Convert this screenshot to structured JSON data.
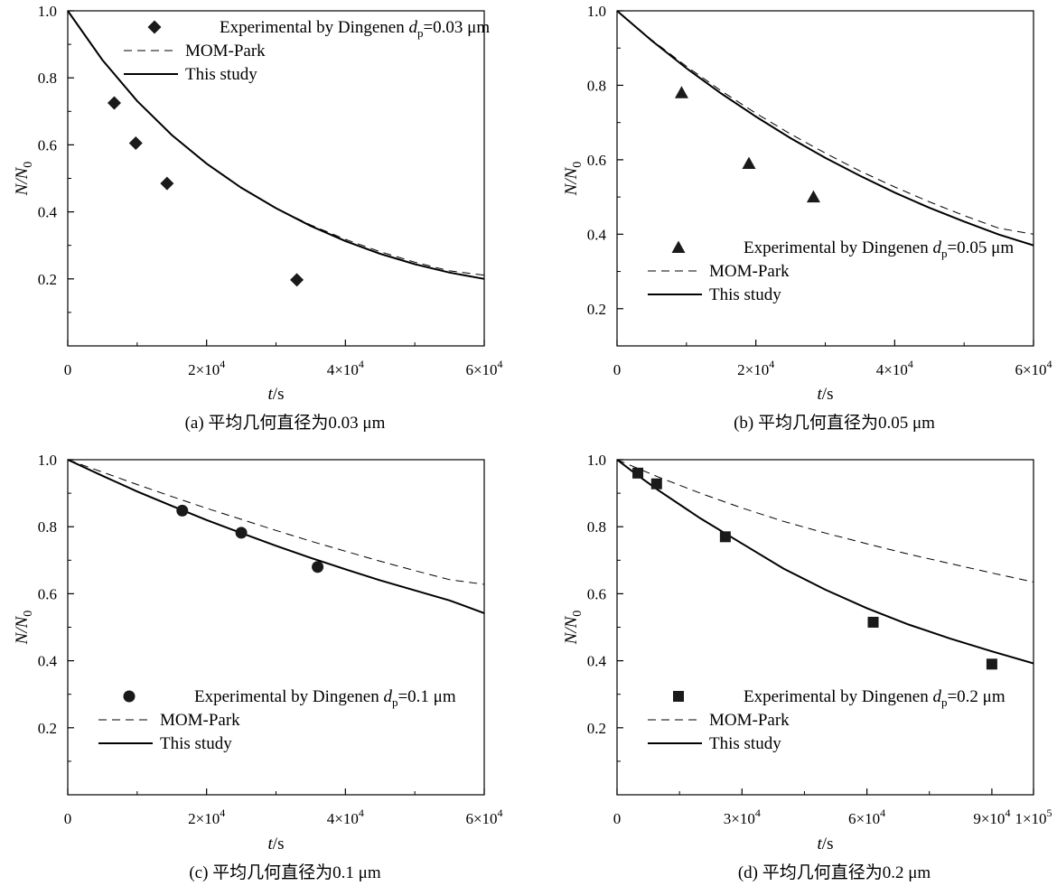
{
  "chart_data": [
    {
      "type": "scatter",
      "caption": "(a) 平均几何直径为0.03 μm",
      "xlabel_main": "t",
      "xlabel_unit": "/s",
      "ylabel_main": "N/N",
      "ylabel_sub": "0",
      "xlim": [
        0,
        60000
      ],
      "ylim": [
        0,
        1.0
      ],
      "x_ticks": [
        {
          "v": 0,
          "m": "0",
          "e": ""
        },
        {
          "v": 20000,
          "m": "2×10",
          "e": "4"
        },
        {
          "v": 40000,
          "m": "4×10",
          "e": "4"
        },
        {
          "v": 60000,
          "m": "6×10",
          "e": "4"
        }
      ],
      "y_ticks": [
        {
          "v": 0.2,
          "label": "0.2"
        },
        {
          "v": 0.4,
          "label": "0.4"
        },
        {
          "v": 0.6,
          "label": "0.6"
        },
        {
          "v": 0.8,
          "label": "0.8"
        },
        {
          "v": 1.0,
          "label": "1.0"
        }
      ],
      "legend": {
        "position": "top-right",
        "exp_main": "Experimental by Dingenen ",
        "exp_d": "d",
        "exp_sub": "p",
        "exp_value": "=0.03 μm",
        "mom": "MOM-Park",
        "study": "This study"
      },
      "marker": "diamond",
      "experimental": [
        [
          6700,
          0.725
        ],
        [
          9800,
          0.605
        ],
        [
          14300,
          0.485
        ],
        [
          33000,
          0.197
        ]
      ],
      "mom_park": [
        [
          0,
          1.0
        ],
        [
          5000,
          0.853
        ],
        [
          10000,
          0.731
        ],
        [
          15000,
          0.629
        ],
        [
          20000,
          0.544
        ],
        [
          25000,
          0.472
        ],
        [
          30000,
          0.411
        ],
        [
          35000,
          0.361
        ],
        [
          40000,
          0.318
        ],
        [
          45000,
          0.281
        ],
        [
          50000,
          0.25
        ],
        [
          55000,
          0.224
        ],
        [
          60000,
          0.211
        ]
      ],
      "this_study": [
        [
          0,
          1.0
        ],
        [
          5000,
          0.853
        ],
        [
          10000,
          0.731
        ],
        [
          15000,
          0.629
        ],
        [
          20000,
          0.544
        ],
        [
          25000,
          0.472
        ],
        [
          30000,
          0.411
        ],
        [
          35000,
          0.358
        ],
        [
          40000,
          0.313
        ],
        [
          45000,
          0.275
        ],
        [
          50000,
          0.244
        ],
        [
          55000,
          0.219
        ],
        [
          60000,
          0.2
        ]
      ]
    },
    {
      "type": "scatter",
      "caption": "(b) 平均几何直径为0.05 μm",
      "xlabel_main": "t",
      "xlabel_unit": "/s",
      "ylabel_main": "N/N",
      "ylabel_sub": "0",
      "xlim": [
        0,
        60000
      ],
      "ylim": [
        0.1,
        1.0
      ],
      "x_ticks": [
        {
          "v": 0,
          "m": "0",
          "e": ""
        },
        {
          "v": 20000,
          "m": "2×10",
          "e": "4"
        },
        {
          "v": 40000,
          "m": "4×10",
          "e": "4"
        },
        {
          "v": 60000,
          "m": "6×10",
          "e": "4"
        }
      ],
      "y_ticks": [
        {
          "v": 0.2,
          "label": "0.2"
        },
        {
          "v": 0.4,
          "label": "0.4"
        },
        {
          "v": 0.6,
          "label": "0.6"
        },
        {
          "v": 0.8,
          "label": "0.8"
        },
        {
          "v": 1.0,
          "label": "1.0"
        }
      ],
      "legend": {
        "position": "bottom-left",
        "exp_main": "Experimental by Dingenen ",
        "exp_d": "d",
        "exp_sub": "p",
        "exp_value": "=0.05 μm",
        "mom": "MOM-Park",
        "study": "This study"
      },
      "marker": "triangle",
      "experimental": [
        [
          9300,
          0.78
        ],
        [
          19000,
          0.59
        ],
        [
          28300,
          0.5
        ]
      ],
      "mom_park": [
        [
          0,
          1.0
        ],
        [
          5000,
          0.922
        ],
        [
          10000,
          0.851
        ],
        [
          15000,
          0.785
        ],
        [
          20000,
          0.725
        ],
        [
          25000,
          0.669
        ],
        [
          30000,
          0.618
        ],
        [
          35000,
          0.57
        ],
        [
          40000,
          0.527
        ],
        [
          45000,
          0.487
        ],
        [
          50000,
          0.45
        ],
        [
          55000,
          0.416
        ],
        [
          60000,
          0.4
        ]
      ],
      "this_study": [
        [
          0,
          1.0
        ],
        [
          5000,
          0.92
        ],
        [
          10000,
          0.846
        ],
        [
          15000,
          0.778
        ],
        [
          20000,
          0.716
        ],
        [
          25000,
          0.658
        ],
        [
          30000,
          0.605
        ],
        [
          35000,
          0.557
        ],
        [
          40000,
          0.512
        ],
        [
          45000,
          0.471
        ],
        [
          50000,
          0.434
        ],
        [
          55000,
          0.399
        ],
        [
          60000,
          0.37
        ]
      ]
    },
    {
      "type": "scatter",
      "caption": "(c) 平均几何直径为0.1 μm",
      "xlabel_main": "t",
      "xlabel_unit": "/s",
      "ylabel_main": "N/N",
      "ylabel_sub": "0",
      "xlim": [
        0,
        60000
      ],
      "ylim": [
        0,
        1.0
      ],
      "x_ticks": [
        {
          "v": 0,
          "m": "0",
          "e": ""
        },
        {
          "v": 20000,
          "m": "2×10",
          "e": "4"
        },
        {
          "v": 40000,
          "m": "4×10",
          "e": "4"
        },
        {
          "v": 60000,
          "m": "6×10",
          "e": "4"
        }
      ],
      "y_ticks": [
        {
          "v": 0.2,
          "label": "0.2"
        },
        {
          "v": 0.4,
          "label": "0.4"
        },
        {
          "v": 0.6,
          "label": "0.6"
        },
        {
          "v": 0.8,
          "label": "0.8"
        },
        {
          "v": 1.0,
          "label": "1.0"
        }
      ],
      "legend": {
        "position": "bottom-left",
        "exp_main": "Experimental by Dingenen ",
        "exp_d": "d",
        "exp_sub": "p",
        "exp_value": "=0.1 μm",
        "mom": "MOM-Park",
        "study": "This study"
      },
      "marker": "circle",
      "experimental": [
        [
          16500,
          0.848
        ],
        [
          25000,
          0.782
        ],
        [
          36000,
          0.68
        ]
      ],
      "mom_park": [
        [
          0,
          1.0
        ],
        [
          5000,
          0.963
        ],
        [
          10000,
          0.926
        ],
        [
          15000,
          0.89
        ],
        [
          20000,
          0.855
        ],
        [
          25000,
          0.822
        ],
        [
          30000,
          0.789
        ],
        [
          35000,
          0.757
        ],
        [
          40000,
          0.727
        ],
        [
          45000,
          0.697
        ],
        [
          50000,
          0.669
        ],
        [
          55000,
          0.642
        ],
        [
          60000,
          0.628
        ]
      ],
      "this_study": [
        [
          0,
          1.0
        ],
        [
          5000,
          0.952
        ],
        [
          10000,
          0.905
        ],
        [
          15000,
          0.862
        ],
        [
          20000,
          0.82
        ],
        [
          25000,
          0.781
        ],
        [
          30000,
          0.743
        ],
        [
          35000,
          0.707
        ],
        [
          40000,
          0.673
        ],
        [
          45000,
          0.64
        ],
        [
          50000,
          0.61
        ],
        [
          55000,
          0.58
        ],
        [
          60000,
          0.542
        ]
      ]
    },
    {
      "type": "scatter",
      "caption": "(d) 平均几何直径为0.2 μm",
      "xlabel_main": "t",
      "xlabel_unit": "/s",
      "ylabel_main": "N/N",
      "ylabel_sub": "0",
      "xlim": [
        0,
        100000
      ],
      "ylim": [
        0,
        1.0
      ],
      "x_ticks": [
        {
          "v": 0,
          "m": "0",
          "e": ""
        },
        {
          "v": 30000,
          "m": "3×10",
          "e": "4"
        },
        {
          "v": 60000,
          "m": "6×10",
          "e": "4"
        },
        {
          "v": 90000,
          "m": "9×10",
          "e": "4"
        },
        {
          "v": 100000,
          "m": "1×10",
          "e": "5"
        }
      ],
      "y_ticks": [
        {
          "v": 0.2,
          "label": "0.2"
        },
        {
          "v": 0.4,
          "label": "0.4"
        },
        {
          "v": 0.6,
          "label": "0.6"
        },
        {
          "v": 0.8,
          "label": "0.8"
        },
        {
          "v": 1.0,
          "label": "1.0"
        }
      ],
      "legend": {
        "position": "bottom-left",
        "exp_main": "Experimental by Dingenen ",
        "exp_d": "d",
        "exp_sub": "p",
        "exp_value": "=0.2 μm",
        "mom": "MOM-Park",
        "study": "This study"
      },
      "marker": "square",
      "experimental": [
        [
          5000,
          0.96
        ],
        [
          9500,
          0.928
        ],
        [
          26000,
          0.77
        ],
        [
          61500,
          0.515
        ],
        [
          90000,
          0.39
        ]
      ],
      "mom_park": [
        [
          0,
          1.0
        ],
        [
          10000,
          0.948
        ],
        [
          20000,
          0.9
        ],
        [
          30000,
          0.856
        ],
        [
          40000,
          0.816
        ],
        [
          50000,
          0.781
        ],
        [
          60000,
          0.749
        ],
        [
          70000,
          0.718
        ],
        [
          80000,
          0.69
        ],
        [
          90000,
          0.662
        ],
        [
          100000,
          0.635
        ]
      ],
      "this_study": [
        [
          0,
          1.0
        ],
        [
          5000,
          0.953
        ],
        [
          10000,
          0.908
        ],
        [
          20000,
          0.825
        ],
        [
          30000,
          0.75
        ],
        [
          40000,
          0.675
        ],
        [
          50000,
          0.612
        ],
        [
          60000,
          0.557
        ],
        [
          70000,
          0.508
        ],
        [
          80000,
          0.466
        ],
        [
          90000,
          0.428
        ],
        [
          100000,
          0.392
        ]
      ]
    }
  ]
}
